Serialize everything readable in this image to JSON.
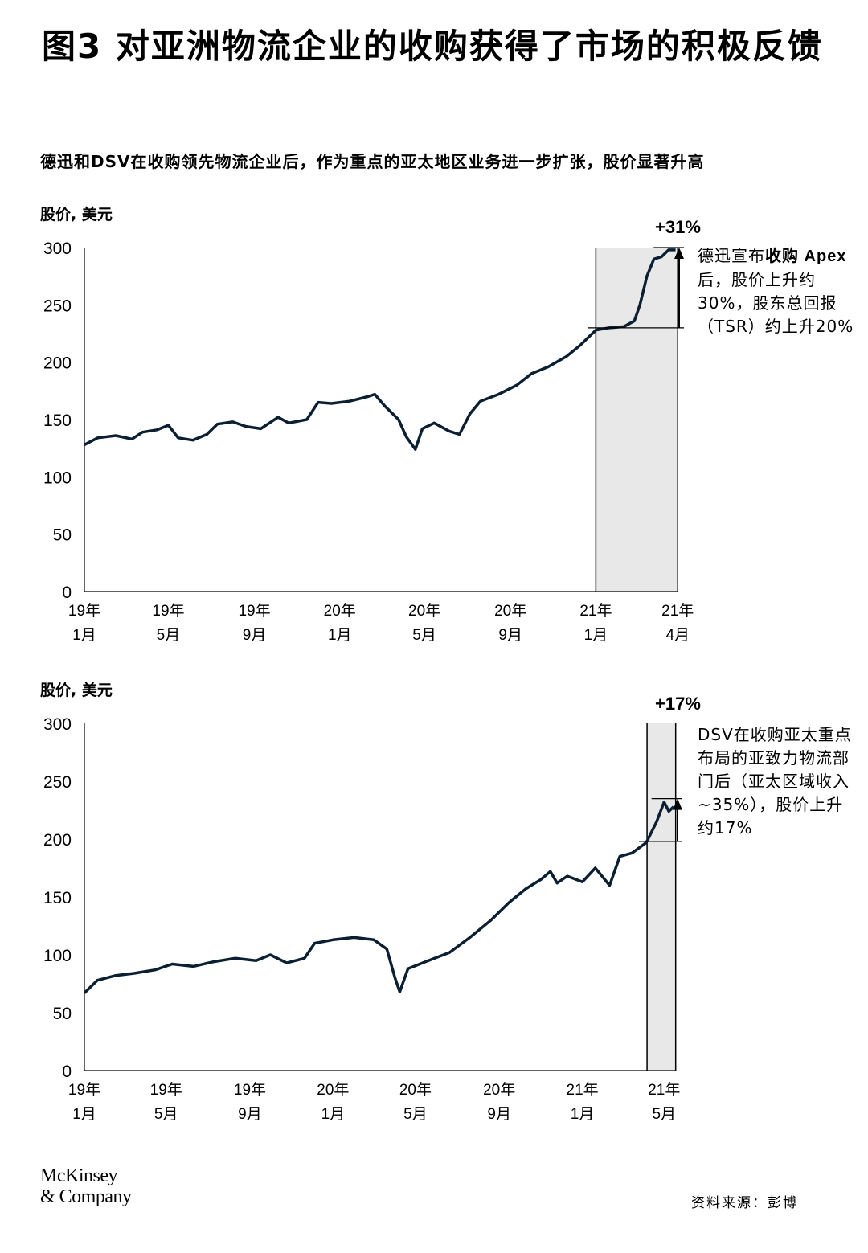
{
  "title": "图3 对亚洲物流企业的收购获得了市场的积极反馈",
  "subtitle": "德迅和DSV在收购领先物流企业后，作为重点的亚太地区业务进一步扩张，股价显著升高",
  "footer": {
    "logo": "McKinsey & Company",
    "logo_line1": "McKinsey",
    "logo_line2": "& Company",
    "source": "资料来源：彭博"
  },
  "chart_data": [
    {
      "type": "line",
      "ylabel": "股价, 美元",
      "ylim": [
        0,
        300
      ],
      "yticks": [
        "0",
        "50",
        "100",
        "150",
        "200",
        "250",
        "300"
      ],
      "xticks": [
        {
          "date": "2019-01-01",
          "l1": "19年",
          "l2": "1月"
        },
        {
          "date": "2019-05-01",
          "l1": "19年",
          "l2": "5月"
        },
        {
          "date": "2019-09-01",
          "l1": "19年",
          "l2": "9月"
        },
        {
          "date": "2020-01-01",
          "l1": "20年",
          "l2": "1月"
        },
        {
          "date": "2020-05-01",
          "l1": "20年",
          "l2": "5月"
        },
        {
          "date": "2020-09-01",
          "l1": "20年",
          "l2": "9月"
        },
        {
          "date": "2021-01-01",
          "l1": "21年",
          "l2": "1月"
        },
        {
          "date": "2021-04-28",
          "l1": "21年",
          "l2": "4月"
        }
      ],
      "series": [
        {
          "color": "#0b1f33",
          "points": [
            [
              "2019-01-01",
              128
            ],
            [
              "2019-01-20",
              134
            ],
            [
              "2019-02-15",
              136
            ],
            [
              "2019-03-10",
              133
            ],
            [
              "2019-03-25",
              139
            ],
            [
              "2019-04-15",
              141
            ],
            [
              "2019-05-01",
              145
            ],
            [
              "2019-05-15",
              134
            ],
            [
              "2019-06-05",
              132
            ],
            [
              "2019-06-25",
              137
            ],
            [
              "2019-07-10",
              146
            ],
            [
              "2019-08-01",
              148
            ],
            [
              "2019-08-20",
              144
            ],
            [
              "2019-09-10",
              142
            ],
            [
              "2019-10-05",
              152
            ],
            [
              "2019-10-20",
              147
            ],
            [
              "2019-11-15",
              150
            ],
            [
              "2019-12-01",
              165
            ],
            [
              "2019-12-20",
              164
            ],
            [
              "2020-01-15",
              166
            ],
            [
              "2020-02-10",
              170
            ],
            [
              "2020-02-20",
              172
            ],
            [
              "2020-03-05",
              162
            ],
            [
              "2020-03-25",
              150
            ],
            [
              "2020-04-05",
              135
            ],
            [
              "2020-04-18",
              124
            ],
            [
              "2020-04-28",
              142
            ],
            [
              "2020-05-15",
              147
            ],
            [
              "2020-06-05",
              140
            ],
            [
              "2020-06-20",
              137
            ],
            [
              "2020-07-05",
              155
            ],
            [
              "2020-07-20",
              166
            ],
            [
              "2020-08-15",
              172
            ],
            [
              "2020-09-10",
              180
            ],
            [
              "2020-10-01",
              190
            ],
            [
              "2020-10-25",
              196
            ],
            [
              "2020-11-20",
              205
            ],
            [
              "2020-12-10",
              215
            ],
            [
              "2021-01-01",
              228
            ],
            [
              "2021-01-20",
              230
            ],
            [
              "2021-02-10",
              231
            ],
            [
              "2021-02-25",
              236
            ],
            [
              "2021-03-05",
              250
            ],
            [
              "2021-03-15",
              275
            ],
            [
              "2021-03-25",
              290
            ],
            [
              "2021-04-05",
              292
            ],
            [
              "2021-04-15",
              298
            ],
            [
              "2021-04-25",
              298
            ]
          ]
        }
      ],
      "highlight": {
        "start": "2021-01-01",
        "end": "2021-04-28",
        "color": "#e8e8e8",
        "base": 230,
        "top": 300,
        "change_label": "+31%"
      },
      "annotation": "德迅宣布收购Apex后，股价上升约30%，股东总回报（TSR）约上升20%",
      "annotation_bold": [
        "收购",
        "Apex"
      ]
    },
    {
      "type": "line",
      "ylabel": "股价, 美元",
      "ylim": [
        0,
        300
      ],
      "yticks": [
        "0",
        "50",
        "100",
        "150",
        "200",
        "250",
        "300"
      ],
      "xticks": [
        {
          "date": "2019-01-01",
          "l1": "19年",
          "l2": "1月"
        },
        {
          "date": "2019-05-01",
          "l1": "19年",
          "l2": "5月"
        },
        {
          "date": "2019-09-01",
          "l1": "19年",
          "l2": "9月"
        },
        {
          "date": "2020-01-01",
          "l1": "20年",
          "l2": "1月"
        },
        {
          "date": "2020-05-01",
          "l1": "20年",
          "l2": "5月"
        },
        {
          "date": "2020-09-01",
          "l1": "20年",
          "l2": "9月"
        },
        {
          "date": "2021-01-01",
          "l1": "21年",
          "l2": "1月"
        },
        {
          "date": "2021-05-01",
          "l1": "21年",
          "l2": "5月"
        }
      ],
      "series": [
        {
          "color": "#0b1f33",
          "points": [
            [
              "2019-01-01",
              67
            ],
            [
              "2019-01-20",
              78
            ],
            [
              "2019-02-15",
              82
            ],
            [
              "2019-03-15",
              84
            ],
            [
              "2019-04-15",
              87
            ],
            [
              "2019-05-10",
              92
            ],
            [
              "2019-06-10",
              90
            ],
            [
              "2019-07-10",
              94
            ],
            [
              "2019-08-10",
              97
            ],
            [
              "2019-09-10",
              95
            ],
            [
              "2019-10-01",
              100
            ],
            [
              "2019-10-25",
              93
            ],
            [
              "2019-11-20",
              97
            ],
            [
              "2019-12-05",
              110
            ],
            [
              "2020-01-01",
              113
            ],
            [
              "2020-02-01",
              115
            ],
            [
              "2020-03-01",
              113
            ],
            [
              "2020-03-20",
              105
            ],
            [
              "2020-04-01",
              80
            ],
            [
              "2020-04-08",
              68
            ],
            [
              "2020-04-20",
              88
            ],
            [
              "2020-05-20",
              95
            ],
            [
              "2020-06-20",
              102
            ],
            [
              "2020-07-20",
              115
            ],
            [
              "2020-08-20",
              130
            ],
            [
              "2020-09-15",
              145
            ],
            [
              "2020-10-10",
              157
            ],
            [
              "2020-11-01",
              165
            ],
            [
              "2020-11-15",
              172
            ],
            [
              "2020-11-25",
              162
            ],
            [
              "2020-12-10",
              168
            ],
            [
              "2021-01-01",
              163
            ],
            [
              "2021-01-20",
              175
            ],
            [
              "2021-02-10",
              160
            ],
            [
              "2021-02-25",
              185
            ],
            [
              "2021-03-15",
              188
            ],
            [
              "2021-04-05",
              197
            ],
            [
              "2021-04-20",
              215
            ],
            [
              "2021-05-01",
              232
            ],
            [
              "2021-05-08",
              224
            ],
            [
              "2021-05-15",
              228
            ]
          ]
        }
      ],
      "highlight": {
        "start": "2021-04-06",
        "end": "2021-05-18",
        "color": "#e8e8e8",
        "base": 198,
        "top": 235,
        "change_label": "+17%"
      },
      "annotation": "DSV在收购亚太重点布局的亚致力物流部门后（亚太区域收入~35%），股价上升约17%"
    }
  ]
}
